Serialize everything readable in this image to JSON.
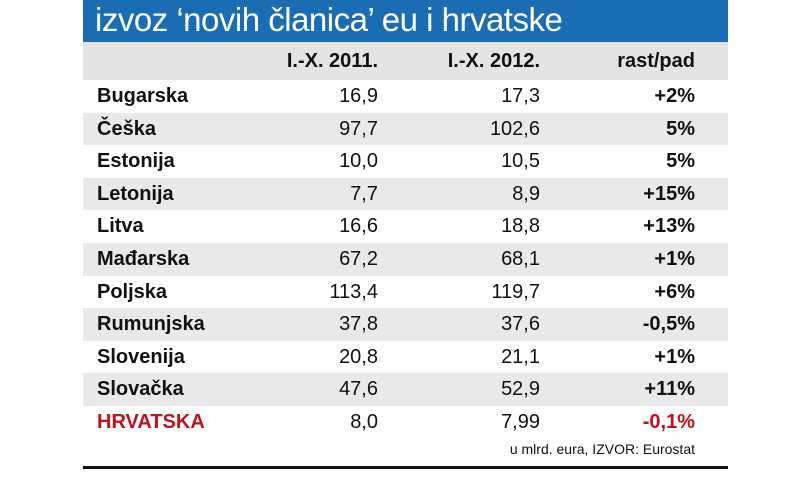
{
  "title": "izvoz ‘novih članica’ eu i hrvatske",
  "table": {
    "header": [
      "I.-X. 2011.",
      "I.-X. 2012.",
      "rast/pad"
    ],
    "rows": [
      [
        "Bugarska",
        "16,9",
        "17,3",
        "+2%"
      ],
      [
        "Češka",
        "97,7",
        "102,6",
        "5%"
      ],
      [
        "Estonija",
        "10,0",
        "10,5",
        "5%"
      ],
      [
        "Letonija",
        "7,7",
        "8,9",
        "+15%"
      ],
      [
        "Litva",
        "16,6",
        "18,8",
        "+13%"
      ],
      [
        "Mađarska",
        "67,2",
        "68,1",
        "+1%"
      ],
      [
        "Poljska",
        "113,4",
        "119,7",
        "+6%"
      ],
      [
        "Rumunjska",
        "37,8",
        "37,6",
        "-0,5%"
      ],
      [
        "Slovenija",
        "20,8",
        "21,1",
        "+1%"
      ],
      [
        "Slovačka",
        "47,6",
        "52,9",
        "+11%"
      ],
      [
        "HRVATSKA",
        "8,0",
        "7,99",
        "-0,1%"
      ]
    ]
  },
  "note": "u mlrd. eura, IZVOR: Eurostat"
}
